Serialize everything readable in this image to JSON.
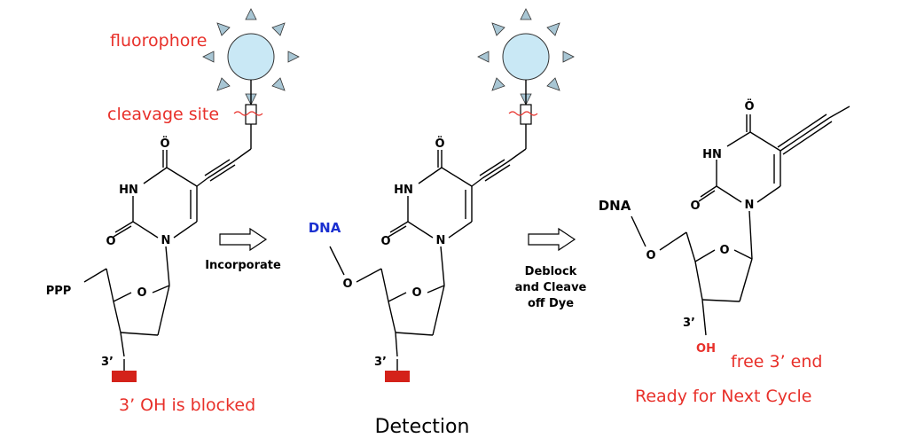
{
  "labels": {
    "fluorophore": "fluorophore",
    "cleavage_site": "cleavage site",
    "blocked": "3’ OH is blocked",
    "incorporate": "Incorporate",
    "deblock_line1": "Deblock",
    "deblock_line2": "and Cleave",
    "deblock_line3": "off Dye",
    "detection": "Detection",
    "free_end": "free 3’ end",
    "ready": "Ready for Next Cycle"
  },
  "atoms": {
    "hn": "HN",
    "o": "O",
    "o_lone": "Ö",
    "n": "N",
    "ppp": "PPP",
    "three_prime": "3’",
    "oh": "OH"
  },
  "dna": {
    "middle": "DNA",
    "right": "DNA",
    "middle_color": "#1a2fd0",
    "right_color": "#000000"
  },
  "colors": {
    "red_text": "#e8302a",
    "block": "#d4221a",
    "fluorophore_body": "#c9e8f5",
    "fluorophore_rays": "#a8c6d4"
  },
  "icons": [
    "fluorophore-icon",
    "cleavage-site-icon",
    "block-icon",
    "arrow-right-icon"
  ]
}
